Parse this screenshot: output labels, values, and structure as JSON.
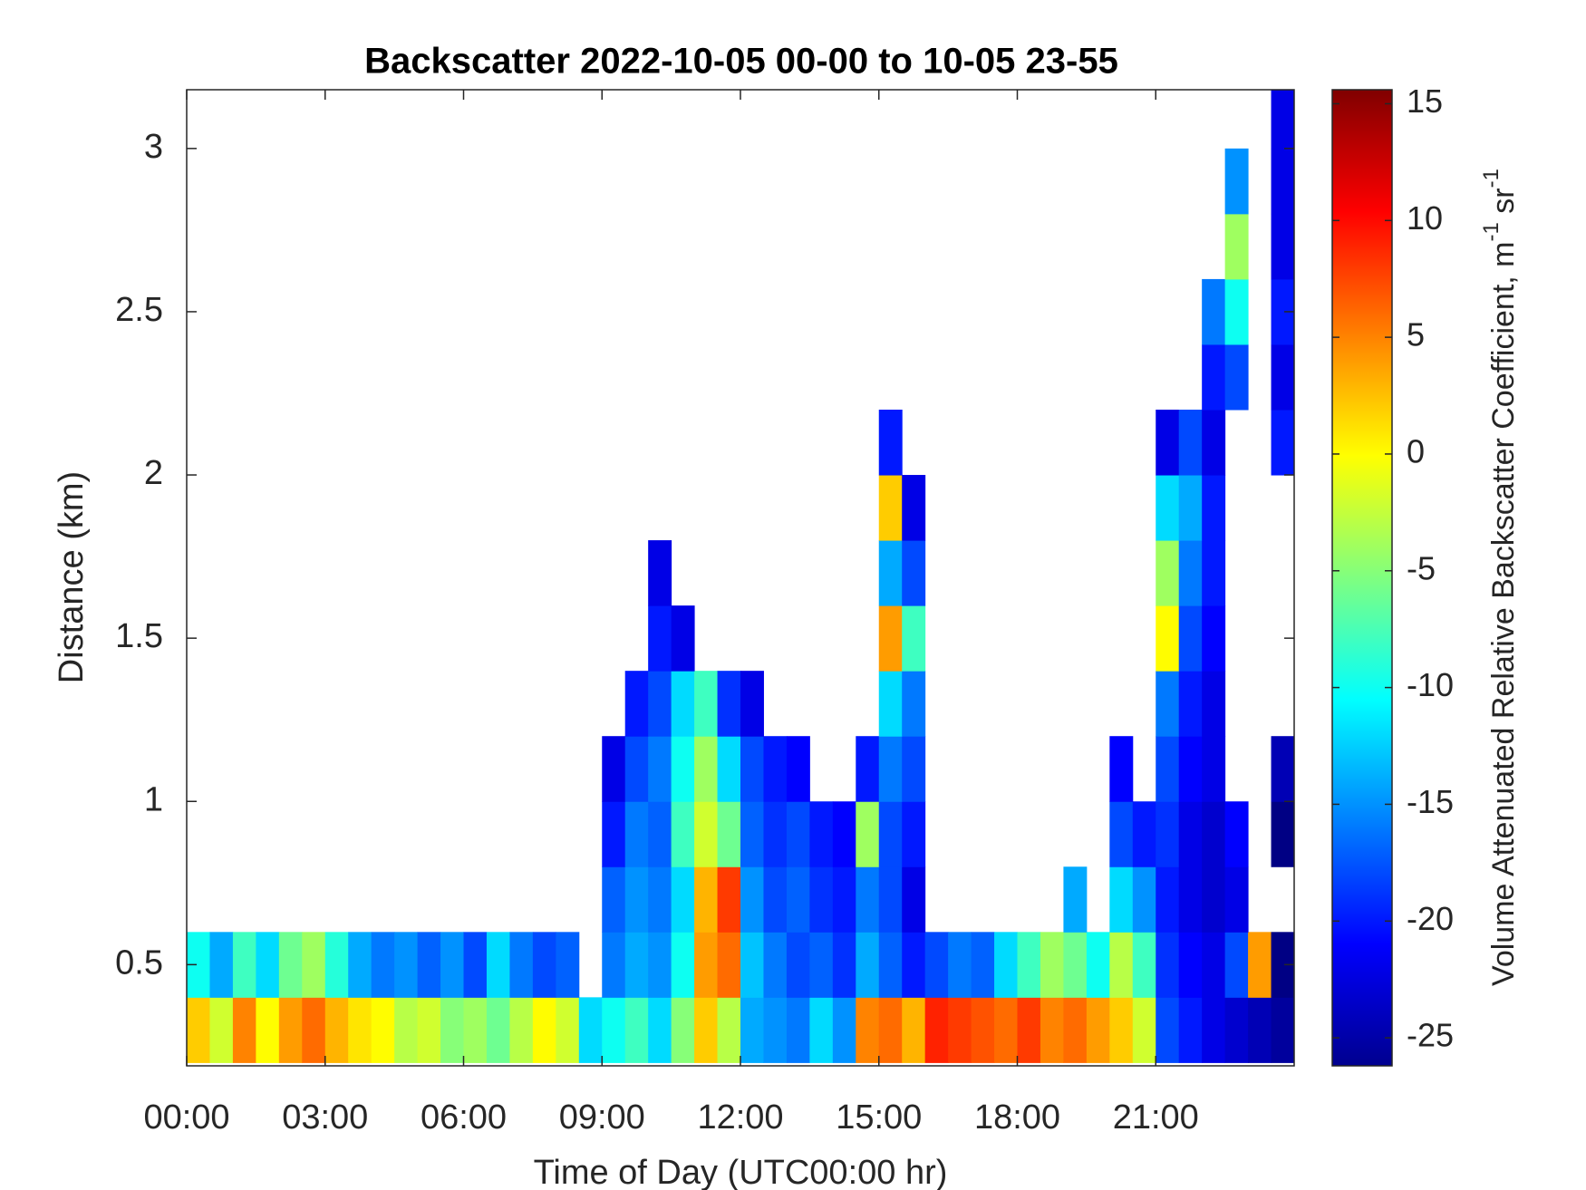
{
  "chart_data": {
    "type": "heatmap",
    "title": "Backscatter 2022-10-05 00-00 to 10-05 23-55",
    "x_label": "Time of Day (UTC00:00 hr)",
    "y_label": "Distance (km)",
    "colorbar_label": [
      "Volume Attenuated Relative Backscatter Coefficient, m",
      "-1",
      " sr",
      "-1"
    ],
    "colormap": "jet",
    "xlim": [
      0,
      24
    ],
    "xticks": [
      {
        "value": 0,
        "label": "00:00"
      },
      {
        "value": 3,
        "label": "03:00"
      },
      {
        "value": 6,
        "label": "06:00"
      },
      {
        "value": 9,
        "label": "09:00"
      },
      {
        "value": 12,
        "label": "12:00"
      },
      {
        "value": 15,
        "label": "15:00"
      },
      {
        "value": 18,
        "label": "18:00"
      },
      {
        "value": 21,
        "label": "21:00"
      }
    ],
    "ylim": [
      0.19,
      3.18
    ],
    "yticks": [
      0.5,
      1,
      1.5,
      2,
      2.5,
      3
    ],
    "clim": [
      -26.2,
      15.6
    ],
    "cticks": [
      -25,
      -20,
      -15,
      -10,
      -5,
      0,
      5,
      10,
      15
    ],
    "x": [
      0.25,
      0.75,
      1.25,
      1.75,
      2.25,
      2.75,
      3.25,
      3.75,
      4.25,
      4.75,
      5.25,
      5.75,
      6.25,
      6.75,
      7.25,
      7.75,
      8.25,
      8.75,
      9.25,
      9.75,
      10.25,
      10.75,
      11.25,
      11.75,
      12.25,
      12.75,
      13.25,
      13.75,
      14.25,
      14.75,
      15.25,
      15.75,
      16.25,
      16.75,
      17.25,
      17.75,
      18.25,
      18.75,
      19.25,
      19.75,
      20.25,
      20.75,
      21.25,
      21.75,
      22.25,
      22.75,
      23.25,
      23.75
    ],
    "y": [
      0.3,
      0.5,
      0.7,
      0.9,
      1.1,
      1.3,
      1.5,
      1.7,
      1.9,
      2.1,
      2.3,
      2.5,
      2.7,
      2.9,
      3.1
    ],
    "z": [
      [
        2,
        -2,
        5,
        0,
        4,
        6,
        3,
        1,
        0,
        -3,
        -2,
        -5,
        -4,
        -6,
        -3,
        0,
        -2,
        -12,
        -10,
        -8,
        -12,
        -5,
        2,
        -3,
        -14,
        -15,
        -16,
        -12,
        -15,
        5,
        6,
        3,
        9,
        8,
        7,
        6,
        8,
        5,
        6,
        4,
        2,
        -2,
        -18,
        -20,
        -22,
        -23,
        -24,
        -25
      ],
      [
        -10,
        -14,
        -8,
        -12,
        -6,
        -4,
        -9,
        -14,
        -16,
        -15,
        -17,
        -15,
        -18,
        -12,
        -16,
        -18,
        -17,
        null,
        -16,
        -14,
        -15,
        -10,
        4,
        6,
        -13,
        -16,
        -18,
        -17,
        -19,
        -14,
        -17,
        -20,
        -18,
        -16,
        -17,
        -12,
        -8,
        -4,
        -6,
        -10,
        -3,
        -8,
        -19,
        -21,
        -22,
        -18,
        4,
        -26
      ],
      [
        null,
        null,
        null,
        null,
        null,
        null,
        null,
        null,
        null,
        null,
        null,
        null,
        null,
        null,
        null,
        null,
        null,
        null,
        -17,
        -15,
        -16,
        -12,
        3,
        8,
        -15,
        -18,
        -17,
        -19,
        -20,
        -16,
        -18,
        -22,
        null,
        null,
        null,
        null,
        null,
        null,
        -14,
        null,
        -12,
        -15,
        -20,
        -22,
        -23,
        -22,
        null,
        null
      ],
      [
        null,
        null,
        null,
        null,
        null,
        null,
        null,
        null,
        null,
        null,
        null,
        null,
        null,
        null,
        null,
        null,
        null,
        null,
        -20,
        -16,
        -17,
        -8,
        -2,
        -6,
        -17,
        -19,
        -18,
        -20,
        -21,
        -4,
        -18,
        -20,
        null,
        null,
        null,
        null,
        null,
        null,
        null,
        null,
        -18,
        -20,
        -19,
        -22,
        -23,
        -21,
        null,
        -26
      ],
      [
        null,
        null,
        null,
        null,
        null,
        null,
        null,
        null,
        null,
        null,
        null,
        null,
        null,
        null,
        null,
        null,
        null,
        null,
        -22,
        -18,
        -16,
        -10,
        -4,
        -12,
        -18,
        -20,
        -21,
        null,
        null,
        -20,
        -16,
        -18,
        null,
        null,
        null,
        null,
        null,
        null,
        null,
        null,
        -21,
        null,
        -18,
        -21,
        -22,
        null,
        null,
        -24
      ],
      [
        null,
        null,
        null,
        null,
        null,
        null,
        null,
        null,
        null,
        null,
        null,
        null,
        null,
        null,
        null,
        null,
        null,
        null,
        null,
        -20,
        -18,
        -12,
        -8,
        -19,
        -22,
        null,
        null,
        null,
        null,
        null,
        -12,
        -16,
        null,
        null,
        null,
        null,
        null,
        null,
        null,
        null,
        null,
        null,
        -16,
        -20,
        -22,
        null,
        null,
        null
      ],
      [
        null,
        null,
        null,
        null,
        null,
        null,
        null,
        null,
        null,
        null,
        null,
        null,
        null,
        null,
        null,
        null,
        null,
        null,
        null,
        null,
        -20,
        -22,
        null,
        null,
        null,
        null,
        null,
        null,
        null,
        null,
        4,
        -8,
        null,
        null,
        null,
        null,
        null,
        null,
        null,
        null,
        null,
        null,
        0,
        -18,
        -21,
        null,
        null,
        null
      ],
      [
        null,
        null,
        null,
        null,
        null,
        null,
        null,
        null,
        null,
        null,
        null,
        null,
        null,
        null,
        null,
        null,
        null,
        null,
        null,
        null,
        -22,
        null,
        null,
        null,
        null,
        null,
        null,
        null,
        null,
        null,
        -14,
        -18,
        null,
        null,
        null,
        null,
        null,
        null,
        null,
        null,
        null,
        null,
        -4,
        -16,
        -20,
        null,
        null,
        null
      ],
      [
        null,
        null,
        null,
        null,
        null,
        null,
        null,
        null,
        null,
        null,
        null,
        null,
        null,
        null,
        null,
        null,
        null,
        null,
        null,
        null,
        null,
        null,
        null,
        null,
        null,
        null,
        null,
        null,
        null,
        null,
        2,
        -22,
        null,
        null,
        null,
        null,
        null,
        null,
        null,
        null,
        null,
        null,
        -12,
        -14,
        -20,
        null,
        null,
        null
      ],
      [
        null,
        null,
        null,
        null,
        null,
        null,
        null,
        null,
        null,
        null,
        null,
        null,
        null,
        null,
        null,
        null,
        null,
        null,
        null,
        null,
        null,
        null,
        null,
        null,
        null,
        null,
        null,
        null,
        null,
        null,
        -20,
        null,
        null,
        null,
        null,
        null,
        null,
        null,
        null,
        null,
        null,
        null,
        -22,
        -18,
        -22,
        null,
        null,
        -20
      ],
      [
        null,
        null,
        null,
        null,
        null,
        null,
        null,
        null,
        null,
        null,
        null,
        null,
        null,
        null,
        null,
        null,
        null,
        null,
        null,
        null,
        null,
        null,
        null,
        null,
        null,
        null,
        null,
        null,
        null,
        null,
        null,
        null,
        null,
        null,
        null,
        null,
        null,
        null,
        null,
        null,
        null,
        null,
        null,
        null,
        -20,
        -18,
        null,
        -22
      ],
      [
        null,
        null,
        null,
        null,
        null,
        null,
        null,
        null,
        null,
        null,
        null,
        null,
        null,
        null,
        null,
        null,
        null,
        null,
        null,
        null,
        null,
        null,
        null,
        null,
        null,
        null,
        null,
        null,
        null,
        null,
        null,
        null,
        null,
        null,
        null,
        null,
        null,
        null,
        null,
        null,
        null,
        null,
        null,
        null,
        -16,
        -10,
        null,
        -20
      ],
      [
        null,
        null,
        null,
        null,
        null,
        null,
        null,
        null,
        null,
        null,
        null,
        null,
        null,
        null,
        null,
        null,
        null,
        null,
        null,
        null,
        null,
        null,
        null,
        null,
        null,
        null,
        null,
        null,
        null,
        null,
        null,
        null,
        null,
        null,
        null,
        null,
        null,
        null,
        null,
        null,
        null,
        null,
        null,
        null,
        null,
        -4,
        null,
        -22
      ],
      [
        null,
        null,
        null,
        null,
        null,
        null,
        null,
        null,
        null,
        null,
        null,
        null,
        null,
        null,
        null,
        null,
        null,
        null,
        null,
        null,
        null,
        null,
        null,
        null,
        null,
        null,
        null,
        null,
        null,
        null,
        null,
        null,
        null,
        null,
        null,
        null,
        null,
        null,
        null,
        null,
        null,
        null,
        null,
        null,
        null,
        -15,
        null,
        -22
      ],
      [
        null,
        null,
        null,
        null,
        null,
        null,
        null,
        null,
        null,
        null,
        null,
        null,
        null,
        null,
        null,
        null,
        null,
        null,
        null,
        null,
        null,
        null,
        null,
        null,
        null,
        null,
        null,
        null,
        null,
        null,
        null,
        null,
        null,
        null,
        null,
        null,
        null,
        null,
        null,
        null,
        null,
        null,
        null,
        null,
        null,
        null,
        null,
        -22
      ]
    ]
  }
}
